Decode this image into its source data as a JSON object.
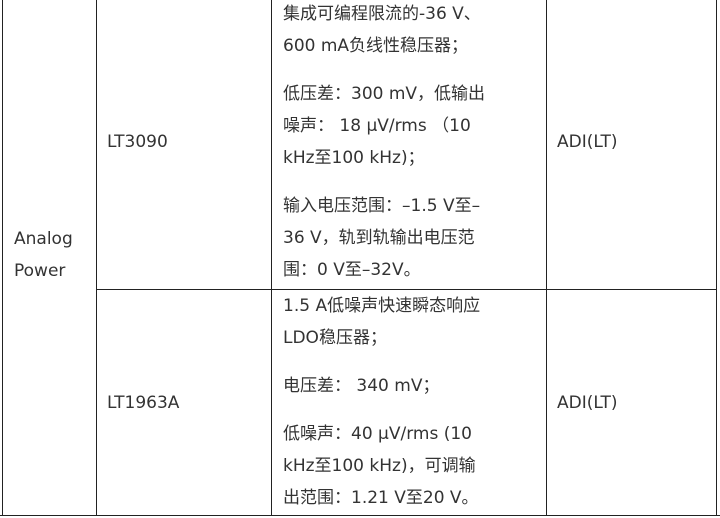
{
  "table": {
    "category": [
      "Analog",
      "Power"
    ],
    "rows": [
      {
        "part": "LT3090",
        "vendor": "ADI(LT)",
        "description_lines": [
          "集成可编程限流的-36 V、",
          "600 mA负线性稳压器；",
          "低压差：300 mV，低输出",
          "噪声： 18 μV/rms （10",
          "kHz至100 kHz)；",
          "输入电压范围：–1.5 V至–",
          "36 V，轨到轨输出电压范",
          "围：0 V至–32V。"
        ]
      },
      {
        "part": "LT1963A",
        "vendor": "ADI(LT)",
        "description_lines": [
          "1.5 A低噪声快速瞬态响应",
          "LDO稳压器；",
          "电压差： 340 mV；",
          "低噪声：40 μV/rms (10",
          "kHz至100  kHz)，可调输",
          "出范围：1.21 V至20 V。"
        ]
      }
    ]
  }
}
